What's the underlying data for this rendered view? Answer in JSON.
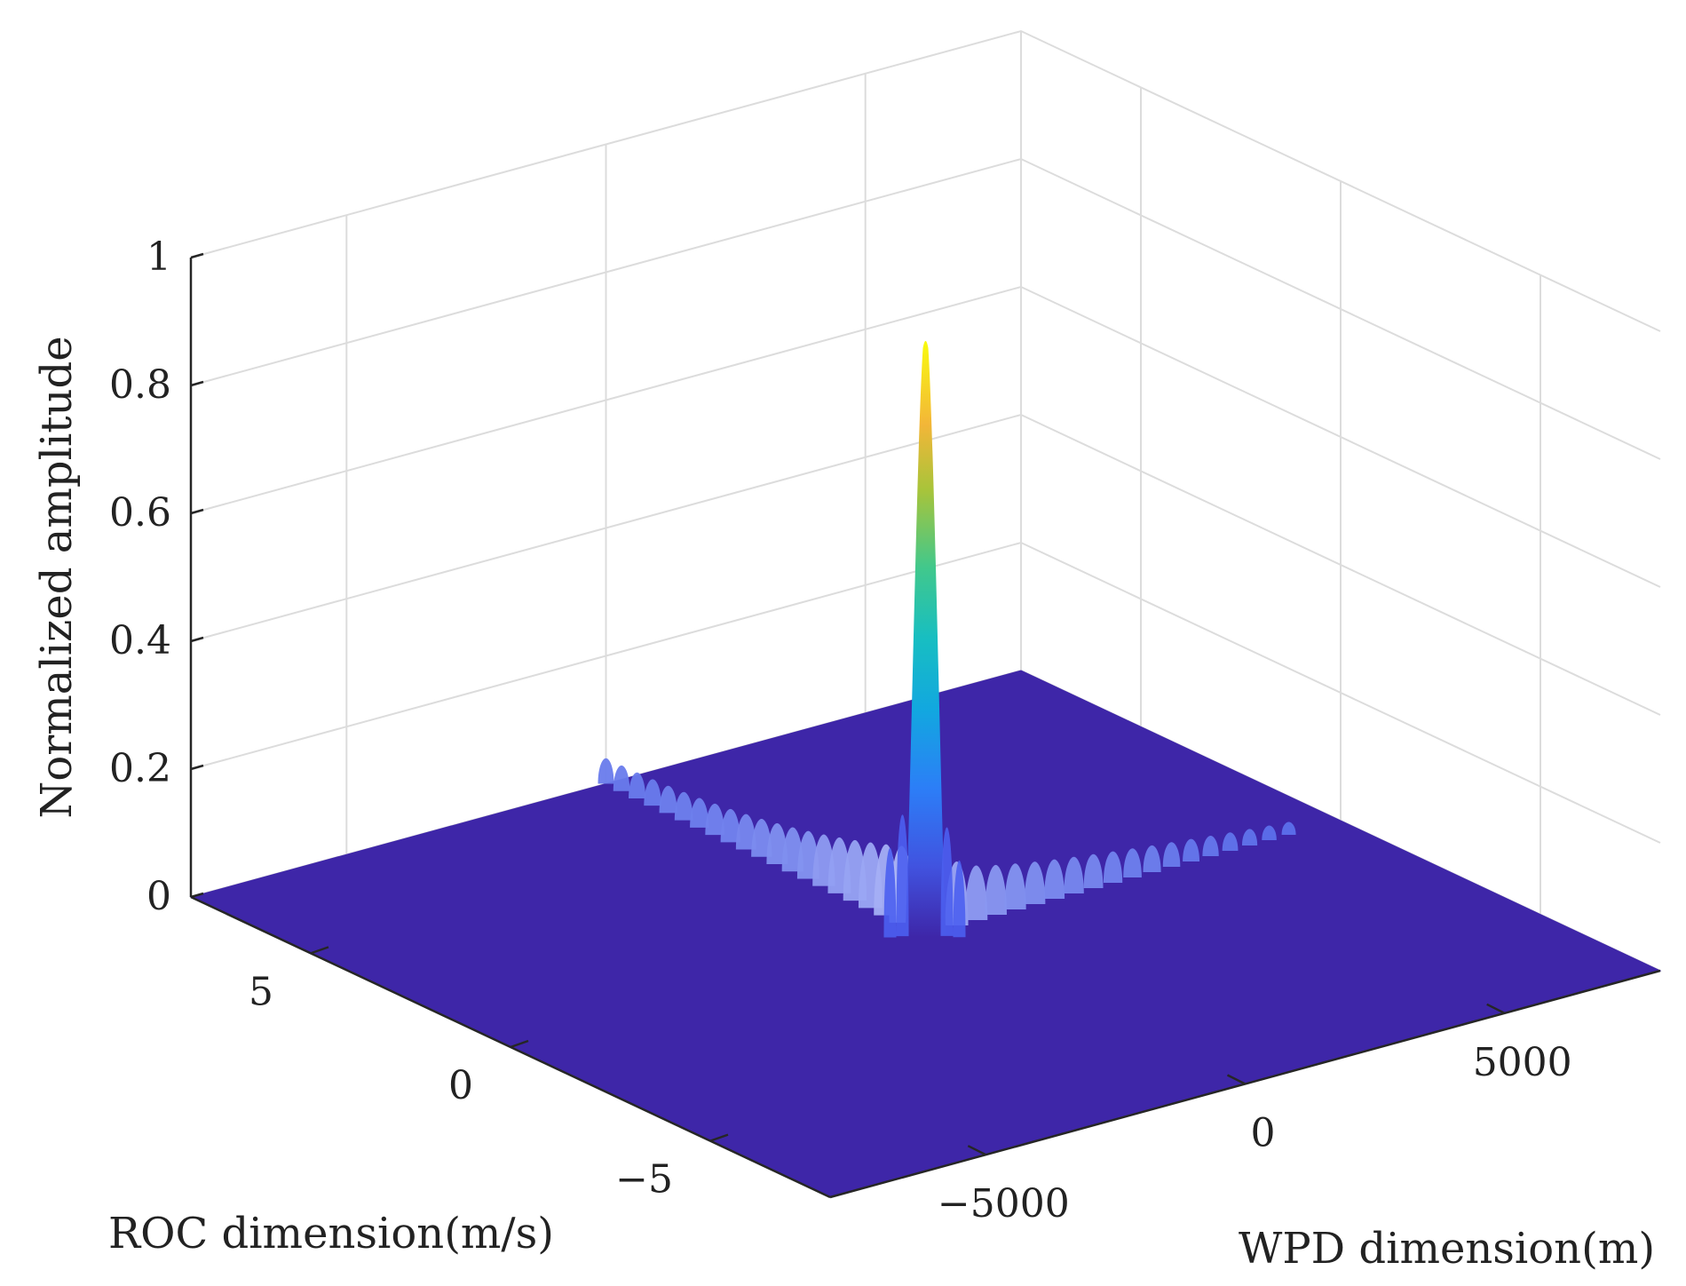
{
  "chart_data": {
    "type": "surface",
    "title": "",
    "xlabel": "WPD dimension(m)",
    "ylabel": "ROC dimension(m/s)",
    "zlabel": "Normalized amplitude",
    "xlim": [
      -8000,
      8000
    ],
    "ylim": [
      -8,
      8
    ],
    "zlim": [
      0,
      1
    ],
    "x_ticks": [
      -5000,
      0,
      5000
    ],
    "x_tick_labels": [
      "−5000",
      "0",
      "5000"
    ],
    "y_ticks": [
      -5,
      0,
      5
    ],
    "y_tick_labels": [
      "−5",
      "0",
      "5"
    ],
    "z_ticks": [
      0,
      0.2,
      0.4,
      0.6,
      0.8,
      1
    ],
    "z_tick_labels": [
      "0",
      "0.2",
      "0.4",
      "0.6",
      "0.8",
      "1"
    ],
    "grid": true,
    "colormap": "parula",
    "peak": {
      "x": 0,
      "y": 0,
      "z": 0.93
    },
    "sidelobe_ridges": [
      {
        "direction": "ROC",
        "lobe_count": 20,
        "max_height": 0.12,
        "far_end_height": 0.04
      },
      {
        "direction": "WPD",
        "lobe_count": 18,
        "max_height": 0.1,
        "far_end_height": 0.02
      }
    ]
  },
  "colors": {
    "floor": "#3e26a8",
    "grid": "#dcdcdc",
    "axis": "#262626"
  }
}
